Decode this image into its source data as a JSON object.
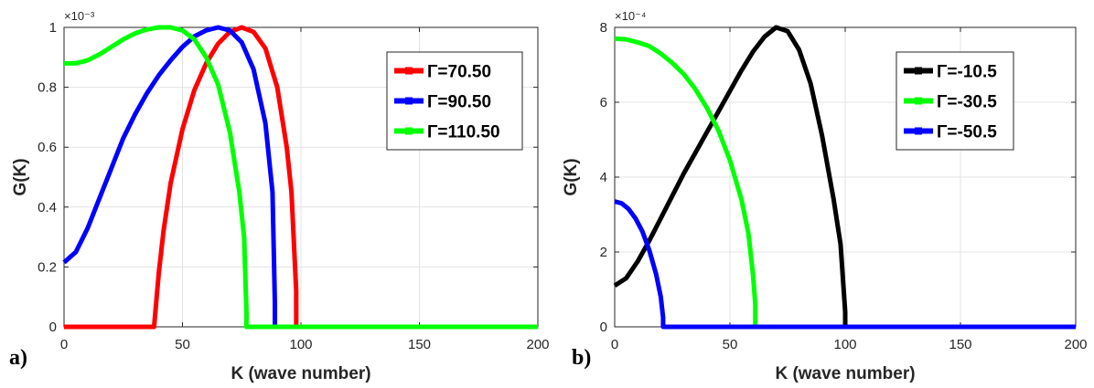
{
  "figure": {
    "panel_labels": [
      "a)",
      "b)"
    ]
  },
  "chart_data": [
    {
      "type": "line",
      "xlabel": "K (wave number)",
      "ylabel": "G(K)",
      "exponent_label": "×10⁻³",
      "xlim": [
        0,
        200
      ],
      "ylim": [
        0,
        1
      ],
      "xticks": [
        0,
        50,
        100,
        150,
        200
      ],
      "yticks": [
        0,
        0.2,
        0.4,
        0.6,
        0.8,
        1
      ],
      "xtick_labels": [
        "0",
        "50",
        "100",
        "150",
        "200"
      ],
      "ytick_labels": [
        "0",
        "0.2",
        "0.4",
        "0.6",
        "0.8",
        "1"
      ],
      "grid": true,
      "legend_position": "top-right",
      "series": [
        {
          "name": "Γ=70.50",
          "color": "#ff0000",
          "x": [
            0,
            10,
            20,
            30,
            38,
            40,
            42,
            45,
            50,
            55,
            60,
            65,
            70,
            75,
            80,
            85,
            90,
            94,
            96,
            98,
            98.01,
            200
          ],
          "y": [
            0,
            0,
            0,
            0,
            0,
            0.18,
            0.32,
            0.48,
            0.66,
            0.79,
            0.88,
            0.945,
            0.985,
            1.0,
            0.985,
            0.93,
            0.8,
            0.6,
            0.45,
            0.12,
            0,
            0
          ]
        },
        {
          "name": "Γ=90.50",
          "color": "#0000ff",
          "x": [
            0,
            5,
            10,
            15,
            20,
            25,
            30,
            35,
            40,
            45,
            50,
            55,
            60,
            65,
            70,
            75,
            80,
            85,
            88,
            89,
            89.01,
            200
          ],
          "y": [
            0.215,
            0.25,
            0.33,
            0.43,
            0.53,
            0.63,
            0.71,
            0.78,
            0.84,
            0.89,
            0.935,
            0.97,
            0.99,
            1.0,
            0.99,
            0.95,
            0.86,
            0.68,
            0.45,
            0.08,
            0,
            0
          ]
        },
        {
          "name": "Γ=110.50",
          "color": "#00ff00",
          "x": [
            0,
            5,
            10,
            15,
            20,
            25,
            30,
            35,
            40,
            45,
            50,
            55,
            60,
            65,
            70,
            74,
            76,
            77,
            77.01,
            200
          ],
          "y": [
            0.88,
            0.88,
            0.89,
            0.91,
            0.935,
            0.96,
            0.98,
            0.993,
            1.0,
            1.0,
            0.99,
            0.96,
            0.9,
            0.81,
            0.65,
            0.45,
            0.3,
            0.05,
            0,
            0
          ]
        }
      ]
    },
    {
      "type": "line",
      "xlabel": "K (wave number)",
      "ylabel": "G(K)",
      "exponent_label": "×10⁻⁴",
      "xlim": [
        0,
        200
      ],
      "ylim": [
        0,
        8
      ],
      "xticks": [
        0,
        50,
        100,
        150,
        200
      ],
      "yticks": [
        0,
        2,
        4,
        6,
        8
      ],
      "xtick_labels": [
        "0",
        "50",
        "100",
        "150",
        "200"
      ],
      "ytick_labels": [
        "0",
        "2",
        "4",
        "6",
        "8"
      ],
      "grid": true,
      "legend_position": "top-right",
      "series": [
        {
          "name": "Γ=-10.5",
          "color": "#000000",
          "x": [
            0,
            5,
            10,
            15,
            20,
            25,
            30,
            35,
            40,
            45,
            50,
            55,
            60,
            65,
            70,
            75,
            80,
            85,
            90,
            95,
            98,
            100,
            100.01,
            200
          ],
          "y": [
            1.1,
            1.3,
            1.75,
            2.3,
            2.9,
            3.5,
            4.1,
            4.65,
            5.2,
            5.75,
            6.3,
            6.85,
            7.35,
            7.75,
            8.0,
            7.9,
            7.4,
            6.5,
            5.1,
            3.4,
            2.2,
            0.4,
            0,
            0
          ]
        },
        {
          "name": "Γ=-30.5",
          "color": "#00ff00",
          "x": [
            0,
            5,
            10,
            15,
            20,
            25,
            30,
            35,
            40,
            45,
            50,
            55,
            58,
            60,
            61,
            61.01,
            200
          ],
          "y": [
            7.7,
            7.68,
            7.6,
            7.5,
            7.3,
            7.05,
            6.75,
            6.35,
            5.85,
            5.25,
            4.45,
            3.4,
            2.5,
            1.4,
            0.6,
            0,
            0
          ]
        },
        {
          "name": "Γ=-50.5",
          "color": "#0000ff",
          "x": [
            0,
            3,
            6,
            9,
            12,
            15,
            18,
            20,
            21,
            21.01,
            200
          ],
          "y": [
            3.35,
            3.3,
            3.15,
            2.9,
            2.55,
            2.05,
            1.4,
            0.8,
            0.25,
            0,
            0
          ]
        }
      ]
    }
  ]
}
